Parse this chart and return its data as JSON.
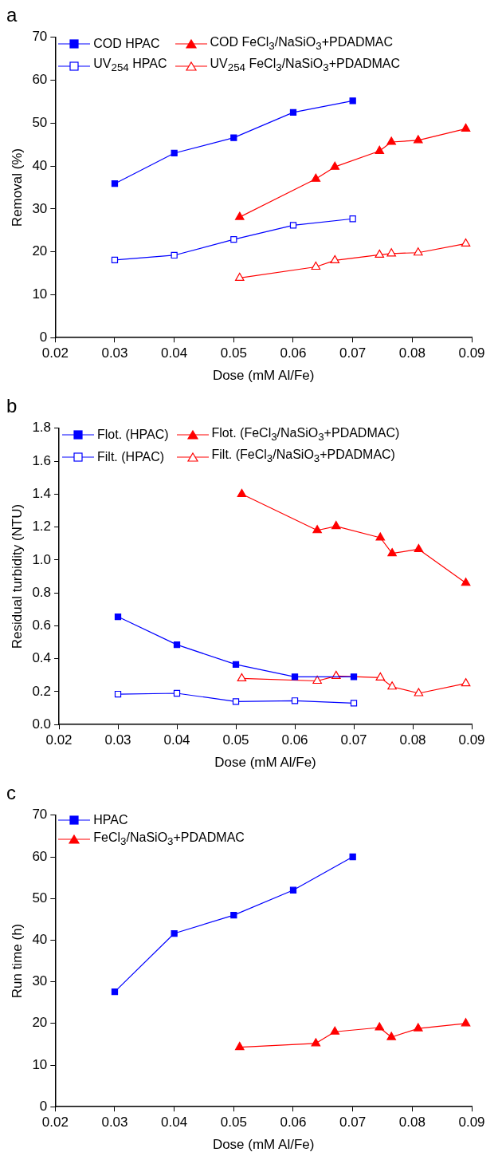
{
  "chart_data": [
    {
      "type": "line",
      "title": "a",
      "xlabel": "Dose (mM Al/Fe)",
      "ylabel": "Removal (%)",
      "xlim": [
        0.02,
        0.09
      ],
      "xticks": [
        0.02,
        0.03,
        0.04,
        0.05,
        0.06,
        0.07,
        0.08,
        0.09
      ],
      "ylim": [
        0,
        70
      ],
      "yticks": [
        0,
        10,
        20,
        30,
        40,
        50,
        60,
        70
      ],
      "grid": false,
      "legend": "top left",
      "line_style": "solid",
      "series": [
        {
          "name": "COD  HPAC",
          "color": "#0000ff",
          "marker": "square",
          "x": [
            0.03,
            0.04,
            0.05,
            0.06,
            0.07
          ],
          "values": [
            35.9,
            43.0,
            46.6,
            52.5,
            55.2
          ]
        },
        {
          "name": "COD  FeCl$_{3}$/NaSiO$_{3}$+PDADMAC",
          "color": "#ff0000",
          "marker": "triangle",
          "x": [
            0.051,
            0.0638,
            0.067,
            0.0745,
            0.0765,
            0.081,
            0.089
          ],
          "values": [
            28.1,
            37.0,
            39.8,
            43.5,
            45.6,
            46.0,
            48.7
          ]
        },
        {
          "name": "UV$_{254}$ HPAC",
          "color": "#0000ff",
          "marker": "square-open",
          "x": [
            0.03,
            0.04,
            0.05,
            0.06,
            0.07
          ],
          "values": [
            18.1,
            19.2,
            22.9,
            26.2,
            27.7
          ]
        },
        {
          "name": "UV$_{254}$ FeCl$_{3}$/NaSiO$_{3}$+PDADMAC",
          "color": "#ff0000",
          "marker": "triangle-open",
          "x": [
            0.051,
            0.0638,
            0.067,
            0.0745,
            0.0765,
            0.081,
            0.089
          ],
          "values": [
            13.9,
            16.5,
            18.0,
            19.3,
            19.6,
            19.8,
            21.9
          ]
        }
      ]
    },
    {
      "type": "line",
      "title": "b",
      "xlabel": "Dose (mM Al/Fe)",
      "ylabel": "Residual turbidity (NTU)",
      "xlim": [
        0.02,
        0.09
      ],
      "xticks": [
        0.02,
        0.03,
        0.04,
        0.05,
        0.06,
        0.07,
        0.08,
        0.09
      ],
      "ylim": [
        0,
        1.8
      ],
      "yticks": [
        {
          "value": 0,
          "label": "0.0"
        },
        {
          "value": 0.2,
          "label": "0.2"
        },
        {
          "value": 0.4,
          "label": "0.4"
        },
        {
          "value": 0.6,
          "label": "0.6"
        },
        {
          "value": 0.8,
          "label": "0.8"
        },
        {
          "value": 1.0,
          "label": "1.0"
        },
        {
          "value": 1.2,
          "label": "1.2"
        },
        {
          "value": 1.4,
          "label": "1.4"
        },
        {
          "value": 1.6,
          "label": "1.6"
        },
        {
          "value": 1.8,
          "label": "1.8"
        }
      ],
      "grid": false,
      "legend": "top left",
      "line_style": "solid",
      "series": [
        {
          "name": "Flot. (HPAC)",
          "color": "#0000ff",
          "marker": "square",
          "x": [
            0.03,
            0.04,
            0.05,
            0.06,
            0.07
          ],
          "values": [
            0.655,
            0.485,
            0.365,
            0.29,
            0.29
          ]
        },
        {
          "name": "Flot. (FeCl$_{3}$/NaSiO$_{3}$+PDADMAC)",
          "color": "#ff0000",
          "marker": "triangle",
          "x": [
            0.051,
            0.0638,
            0.067,
            0.0745,
            0.0765,
            0.081,
            0.089
          ],
          "values": [
            1.4,
            1.18,
            1.205,
            1.135,
            1.04,
            1.065,
            0.86
          ]
        },
        {
          "name": "Filt. (HPAC)",
          "color": "#0000ff",
          "marker": "square-open",
          "x": [
            0.03,
            0.04,
            0.05,
            0.06,
            0.07
          ],
          "values": [
            0.185,
            0.19,
            0.14,
            0.145,
            0.13
          ]
        },
        {
          "name": "Filt. (FeCl$_{3}$/NaSiO$_{3}$+PDADMAC)",
          "color": "#ff0000",
          "marker": "triangle-open",
          "x": [
            0.051,
            0.0638,
            0.067,
            0.0745,
            0.0765,
            0.081,
            0.089
          ],
          "values": [
            0.28,
            0.265,
            0.295,
            0.285,
            0.23,
            0.19,
            0.25
          ]
        }
      ]
    },
    {
      "type": "line",
      "title": "c",
      "xlabel": "Dose (mM Al/Fe)",
      "ylabel": "Run time (h)",
      "xlim": [
        0.02,
        0.09
      ],
      "xticks": [
        0.02,
        0.03,
        0.04,
        0.05,
        0.06,
        0.07,
        0.08,
        0.09
      ],
      "ylim": [
        0,
        70
      ],
      "yticks": [
        0,
        10,
        20,
        30,
        40,
        50,
        60,
        70
      ],
      "grid": false,
      "legend": "top left",
      "line_style": "solid",
      "series": [
        {
          "name": "HPAC",
          "color": "#0000ff",
          "marker": "square",
          "x": [
            0.03,
            0.04,
            0.05,
            0.06,
            0.07
          ],
          "values": [
            27.6,
            41.6,
            46.0,
            52.0,
            60.0
          ]
        },
        {
          "name": "FeCl$_{3}$/NaSiO$_{3}$+PDADMAC",
          "color": "#ff0000",
          "marker": "triangle",
          "x": [
            0.051,
            0.0638,
            0.067,
            0.0745,
            0.0765,
            0.081,
            0.089
          ],
          "values": [
            14.3,
            15.2,
            18.0,
            19.0,
            16.7,
            18.8,
            20.0
          ]
        }
      ]
    }
  ]
}
